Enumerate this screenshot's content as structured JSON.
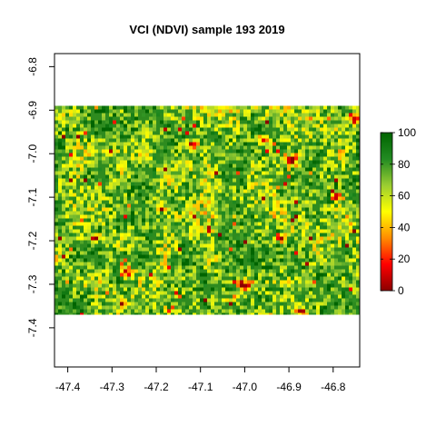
{
  "chart_data": {
    "type": "heatmap",
    "title": "VCI (NDVI) sample 193 2019",
    "xlabel": "",
    "ylabel": "",
    "x_ticks": [
      "-47.4",
      "-47.3",
      "-47.2",
      "-47.1",
      "-47.0",
      "-46.9",
      "-46.8"
    ],
    "y_ticks": [
      "-6.8",
      "-6.9",
      "-7.0",
      "-7.1",
      "-7.2",
      "-7.3",
      "-7.4"
    ],
    "xlim": [
      -47.43,
      -46.74
    ],
    "ylim": [
      -7.49,
      -6.77
    ],
    "raster_extent": {
      "x": [
        -47.43,
        -46.74
      ],
      "y": [
        -7.37,
        -6.89
      ]
    },
    "value_range": [
      0,
      100
    ],
    "colorbar": {
      "ticks": [
        "0",
        "20",
        "40",
        "60",
        "80",
        "100"
      ],
      "colors": [
        "#8b0000",
        "#ff0000",
        "#ff8c00",
        "#ffff00",
        "#9acd32",
        "#228b22",
        "#006400"
      ]
    },
    "grid": false,
    "legend_position": "right"
  }
}
